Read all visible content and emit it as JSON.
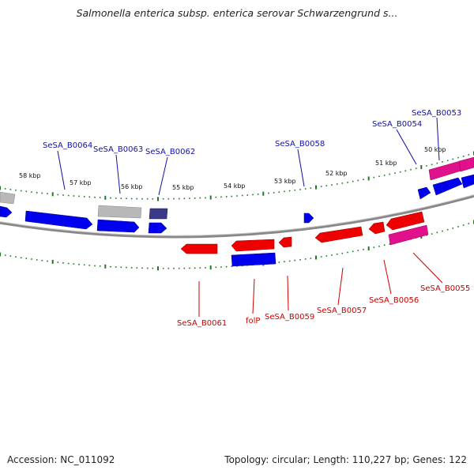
{
  "title": "Salmonella enterica subsp. enterica serovar Schwarzengrund s...",
  "footer": {
    "accession": "Accession: NC_011092",
    "summary": "Topology: circular; Length: 110,227 bp; Genes: 122"
  },
  "colors": {
    "forward_gene": "#0000ee",
    "reverse_gene": "#ee0000",
    "grey_gene": "#b8b8b8",
    "dark_gene": "#3a3a8a",
    "pink_gene": "#e0118a",
    "tick": "#1e7a1e",
    "backbone": "#888888",
    "forward_label": "#1010aa",
    "reverse_label": "#cc0000"
  },
  "scale_labels": [
    "58 kbp",
    "57 kbp",
    "56 kbp",
    "55 kbp",
    "54 kbp",
    "53 kbp",
    "52 kbp",
    "51 kbp",
    "50 kbp"
  ],
  "forward_labels": [
    "SeSA_B0064",
    "SeSA_B0063",
    "SeSA_B0062",
    "SeSA_B0058",
    "SeSA_B0054",
    "SeSA_B0053"
  ],
  "reverse_labels": [
    "SeSA_B0061",
    "folP",
    "SeSA_B0059",
    "SeSA_B0057",
    "SeSA_B0056",
    "SeSA_B0055"
  ]
}
